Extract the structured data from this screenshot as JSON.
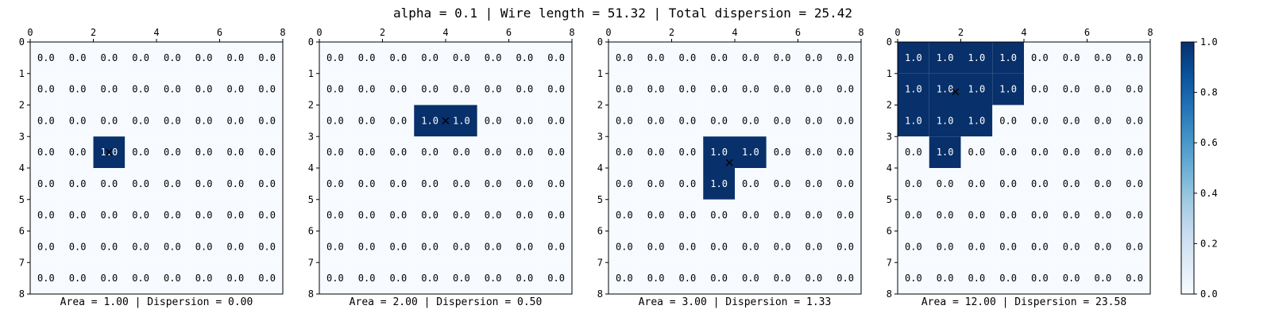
{
  "suptitle": "alpha = 0.1 | Wire length = 51.32 | Total dispersion = 25.42",
  "colormap": {
    "name": "Blues",
    "low_color": "#f7fbff",
    "high_color": "#08306b",
    "text_on_low": "#000000",
    "text_on_high": "#ffffff"
  },
  "chart_data": [
    {
      "type": "heatmap",
      "title": "Area = 1.00 | Dispersion = 0.00",
      "x_ticks": [
        0,
        2,
        4,
        6,
        8
      ],
      "y_ticks": [
        0,
        1,
        2,
        3,
        4,
        5,
        6,
        7,
        8
      ],
      "xlim": [
        0,
        8
      ],
      "ylim": [
        0,
        8
      ],
      "x_axis_position": "top",
      "grid": false,
      "active_cells": [
        [
          3,
          2
        ]
      ],
      "centroid": [
        2.5,
        3.5
      ]
    },
    {
      "type": "heatmap",
      "title": "Area = 2.00 | Dispersion = 0.50",
      "x_ticks": [
        0,
        2,
        4,
        6,
        8
      ],
      "y_ticks": [
        0,
        1,
        2,
        3,
        4,
        5,
        6,
        7,
        8
      ],
      "xlim": [
        0,
        8
      ],
      "ylim": [
        0,
        8
      ],
      "x_axis_position": "top",
      "grid": false,
      "active_cells": [
        [
          2,
          3
        ],
        [
          2,
          4
        ]
      ],
      "centroid": [
        4.0,
        2.5
      ]
    },
    {
      "type": "heatmap",
      "title": "Area = 3.00 | Dispersion = 1.33",
      "x_ticks": [
        0,
        2,
        4,
        6,
        8
      ],
      "y_ticks": [
        0,
        1,
        2,
        3,
        4,
        5,
        6,
        7,
        8
      ],
      "xlim": [
        0,
        8
      ],
      "ylim": [
        0,
        8
      ],
      "x_axis_position": "top",
      "grid": false,
      "active_cells": [
        [
          3,
          3
        ],
        [
          3,
          4
        ],
        [
          4,
          3
        ]
      ],
      "centroid": [
        3.83,
        3.83
      ]
    },
    {
      "type": "heatmap",
      "title": "Area = 12.00 | Dispersion = 23.58",
      "x_ticks": [
        0,
        2,
        4,
        6,
        8
      ],
      "y_ticks": [
        0,
        1,
        2,
        3,
        4,
        5,
        6,
        7,
        8
      ],
      "xlim": [
        0,
        8
      ],
      "ylim": [
        0,
        8
      ],
      "x_axis_position": "top",
      "grid": false,
      "active_cells": [
        [
          0,
          0
        ],
        [
          0,
          1
        ],
        [
          0,
          2
        ],
        [
          0,
          3
        ],
        [
          1,
          0
        ],
        [
          1,
          1
        ],
        [
          1,
          2
        ],
        [
          1,
          3
        ],
        [
          2,
          0
        ],
        [
          2,
          1
        ],
        [
          2,
          2
        ],
        [
          3,
          1
        ]
      ],
      "centroid": [
        1.83,
        1.58
      ]
    }
  ],
  "colorbar": {
    "type": "colorbar",
    "range": [
      0.0,
      1.0
    ],
    "ticks": [
      "0.0",
      "0.2",
      "0.4",
      "0.6",
      "0.8",
      "1.0"
    ]
  }
}
